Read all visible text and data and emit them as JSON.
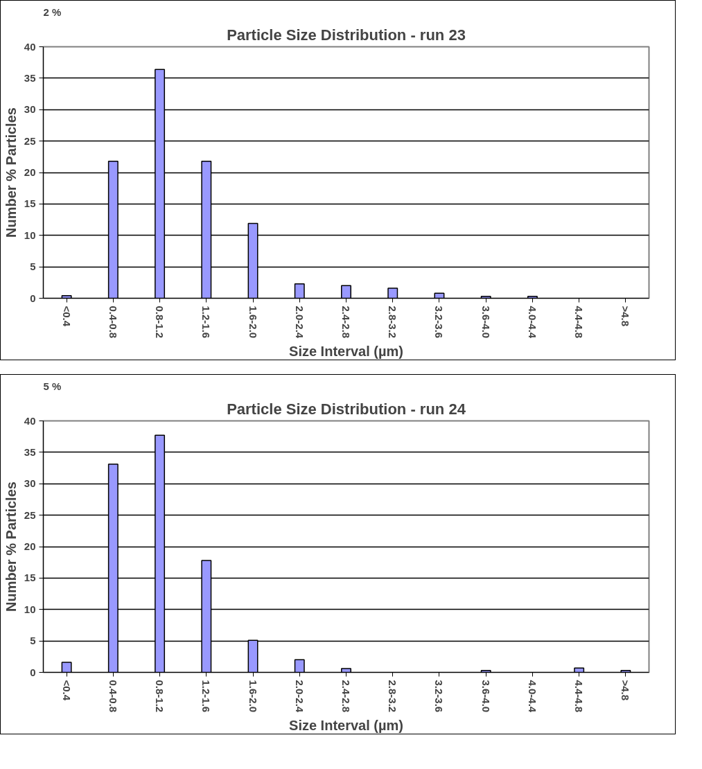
{
  "chart_data": [
    {
      "type": "bar",
      "title": "Particle Size Distribution - run 23",
      "xlabel": "Size Interval (µm)",
      "ylabel": "Number % Particles",
      "annotations": [
        "2 %"
      ],
      "categories": [
        "<0.4",
        "0.4-0.8",
        "0.8-1.2",
        "1.2-1.6",
        "1.6-2.0",
        "2.0-2.4",
        "2.4-2.8",
        "2.8-3.2",
        "3.2-3.6",
        "3.6-4.0",
        "4.0-4.4",
        "4.4-4.8",
        ">4.8"
      ],
      "series": [
        {
          "color": "#9999ff",
          "values": [
            0.4,
            21.8,
            36.4,
            21.8,
            11.9,
            2.3,
            2.0,
            1.6,
            0.8,
            0.3,
            0.3,
            0,
            0
          ]
        }
      ],
      "ylim": [
        0,
        40
      ],
      "yticks": [
        0,
        5,
        10,
        15,
        20,
        25,
        30,
        35,
        40
      ],
      "grid": "y"
    },
    {
      "type": "bar",
      "title": "Particle Size Distribution - run 24",
      "xlabel": "Size Interval (µm)",
      "ylabel": "Number % Particles",
      "annotations": [
        "5 %"
      ],
      "categories": [
        "<0.4",
        "0.4-0.8",
        "0.8-1.2",
        "1.2-1.6",
        "1.6-2.0",
        "2.0-2.4",
        "2.4-2.8",
        "2.8-3.2",
        "3.2-3.6",
        "3.6-4.0",
        "4.0-4.4",
        "4.4-4.8",
        ">4.8"
      ],
      "series": [
        {
          "color": "#9999ff",
          "values": [
            1.6,
            33.1,
            37.7,
            17.8,
            5.1,
            2.0,
            0.6,
            0,
            0,
            0.3,
            0,
            0.7,
            0.3
          ]
        }
      ],
      "ylim": [
        0,
        40
      ],
      "yticks": [
        0,
        5,
        10,
        15,
        20,
        25,
        30,
        35,
        40
      ],
      "grid": "y"
    }
  ]
}
